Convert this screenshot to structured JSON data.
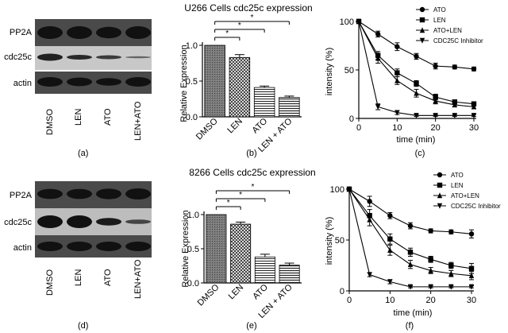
{
  "panels": {
    "a": "(a)",
    "b": "(b)",
    "c": "(c)",
    "d": "(d)",
    "e": "(e)",
    "f": "(f)"
  },
  "western_top": {
    "rows": [
      "PP2A",
      "cdc25c",
      "actin"
    ],
    "lanes": [
      "DMSO",
      "LEN",
      "ATO",
      "LEN+ATO"
    ]
  },
  "western_bottom": {
    "rows": [
      "PP2A",
      "cdc25c",
      "actin"
    ],
    "lanes": [
      "DMSO",
      "LEN",
      "ATO",
      "LEN+ATO"
    ]
  },
  "bar_top": {
    "title": "U266 Cells cdc25c expression",
    "ylabel": "Relative Expression",
    "categories": [
      "DMSO",
      "LEN",
      "ATO",
      "LEN + ATO"
    ],
    "values": [
      1.0,
      0.83,
      0.41,
      0.27
    ],
    "errors": [
      0.0,
      0.04,
      0.02,
      0.02
    ],
    "ylim": [
      0,
      1.0
    ],
    "yticks": [
      "0.0",
      "0.5",
      "1.0"
    ],
    "sig": [
      "*",
      "*",
      "*"
    ]
  },
  "bar_bottom": {
    "title": "8266 Cells cdc25c expression",
    "ylabel": "Relative Expression",
    "categories": [
      "DMSO",
      "LEN",
      "ATO",
      "LEN + ATO"
    ],
    "values": [
      1.0,
      0.86,
      0.38,
      0.26
    ],
    "errors": [
      0.0,
      0.03,
      0.04,
      0.03
    ],
    "ylim": [
      0,
      1.0
    ],
    "yticks": [
      "0.0",
      "0.5",
      "1.0"
    ],
    "sig": [
      "*",
      "*",
      "*"
    ]
  },
  "line_top": {
    "xlabel": "time (min)",
    "ylabel": "intensity (%)",
    "xticks": [
      "0",
      "10",
      "20",
      "30"
    ],
    "yticks": [
      "0",
      "50",
      "100"
    ],
    "xlim": [
      0,
      30
    ],
    "ylim": [
      0,
      100
    ]
  },
  "line_bottom": {
    "xlabel": "time (min)",
    "ylabel": "intensity (%)",
    "xticks": [
      "0",
      "10",
      "20",
      "30"
    ],
    "yticks": [
      "0",
      "50",
      "100"
    ],
    "xlim": [
      0,
      30
    ],
    "ylim": [
      0,
      100
    ]
  },
  "chart_data": [
    {
      "type": "bar",
      "title": "U266 Cells cdc25c expression",
      "ylabel": "Relative Expression",
      "categories": [
        "DMSO",
        "LEN",
        "ATO",
        "LEN + ATO"
      ],
      "values": [
        1.0,
        0.83,
        0.41,
        0.27
      ],
      "ylim": [
        0,
        1.0
      ]
    },
    {
      "type": "line",
      "xlabel": "time (min)",
      "ylabel": "intensity (%)",
      "xlim": [
        0,
        30
      ],
      "ylim": [
        0,
        100
      ],
      "series": [
        {
          "name": "ATO",
          "marker": "circle",
          "x": [
            0,
            5,
            10,
            15,
            20,
            25,
            30
          ],
          "y": [
            100,
            87,
            74,
            64,
            54,
            53,
            51
          ],
          "err": [
            0,
            3,
            4,
            3,
            3,
            2,
            2
          ]
        },
        {
          "name": "LEN",
          "marker": "square",
          "x": [
            0,
            5,
            10,
            15,
            20,
            25,
            30
          ],
          "y": [
            100,
            65,
            47,
            36,
            22,
            17,
            15
          ],
          "err": [
            0,
            4,
            4,
            3,
            3,
            2,
            2
          ]
        },
        {
          "name": "ATO+LEN",
          "marker": "triangle-up",
          "x": [
            0,
            5,
            10,
            15,
            20,
            25,
            30
          ],
          "y": [
            100,
            62,
            39,
            26,
            18,
            14,
            12
          ],
          "err": [
            0,
            5,
            4,
            4,
            3,
            2,
            2
          ]
        },
        {
          "name": "CDC25C Inhibitor",
          "marker": "triangle-down",
          "x": [
            0,
            5,
            10,
            15,
            20,
            25,
            30
          ],
          "y": [
            100,
            12,
            6,
            3,
            3,
            3,
            3
          ],
          "err": [
            0,
            3,
            2,
            1,
            1,
            1,
            1
          ]
        }
      ]
    },
    {
      "type": "bar",
      "title": "8266 Cells cdc25c expression",
      "ylabel": "Relative Expression",
      "categories": [
        "DMSO",
        "LEN",
        "ATO",
        "LEN + ATO"
      ],
      "values": [
        1.0,
        0.86,
        0.38,
        0.26
      ],
      "ylim": [
        0,
        1.0
      ]
    },
    {
      "type": "line",
      "xlabel": "time (min)",
      "ylabel": "intensity (%)",
      "xlim": [
        0,
        30
      ],
      "ylim": [
        0,
        100
      ],
      "series": [
        {
          "name": "ATO",
          "marker": "circle",
          "x": [
            0,
            5,
            10,
            15,
            20,
            25,
            30
          ],
          "y": [
            100,
            88,
            74,
            64,
            59,
            58,
            56
          ],
          "err": [
            0,
            5,
            3,
            3,
            2,
            2,
            4
          ]
        },
        {
          "name": "LEN",
          "marker": "square",
          "x": [
            0,
            5,
            10,
            15,
            20,
            25,
            30
          ],
          "y": [
            100,
            74,
            51,
            38,
            31,
            25,
            22
          ],
          "err": [
            0,
            6,
            5,
            4,
            3,
            3,
            5
          ]
        },
        {
          "name": "ATO+LEN",
          "marker": "triangle-up",
          "x": [
            0,
            5,
            10,
            15,
            20,
            25,
            30
          ],
          "y": [
            100,
            70,
            40,
            26,
            20,
            17,
            15
          ],
          "err": [
            0,
            6,
            5,
            4,
            3,
            3,
            4
          ]
        },
        {
          "name": "CDC25C Inhibitor",
          "marker": "triangle-down",
          "x": [
            0,
            5,
            10,
            15,
            20,
            25,
            30
          ],
          "y": [
            100,
            16,
            9,
            4,
            4,
            4,
            4
          ],
          "err": [
            0,
            2,
            2,
            1,
            1,
            1,
            1
          ]
        }
      ]
    }
  ]
}
